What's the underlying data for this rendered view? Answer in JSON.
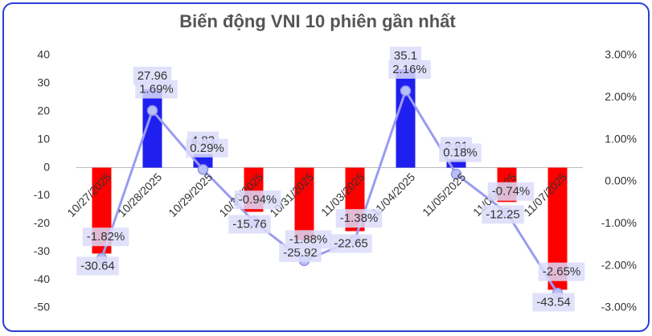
{
  "chart_data": {
    "type": "bar_line",
    "title": "Biến động VNI 10 phiên gần nhất",
    "categories": [
      "10/27/2025",
      "10/28/2025",
      "10/29/2025",
      "10/30/2025",
      "10/31/2025",
      "11/03/2025",
      "11/04/2025",
      "11/05/2025",
      "11/06/2025",
      "11/07/2025"
    ],
    "series": [
      {
        "type": "bar",
        "values": [
          -30.64,
          27.96,
          4.83,
          -15.76,
          -25.92,
          -22.65,
          35.1,
          2.91,
          -12.25,
          -43.54
        ],
        "colors": [
          "#ff0000",
          "#1f1fef",
          "#1f1fef",
          "#ff0000",
          "#ff0000",
          "#ff0000",
          "#1f1fef",
          "#1f1fef",
          "#ff0000",
          "#ff0000"
        ]
      },
      {
        "type": "line",
        "axis": "y2",
        "color": "#9a9cf0",
        "values": [
          -1.82,
          1.69,
          0.29,
          -0.94,
          -1.88,
          -1.38,
          2.16,
          0.18,
          -0.74,
          -2.65
        ],
        "value_labels": [
          "-1.82%",
          "1.69%",
          "0.29%",
          "-0.94%",
          "-1.88%",
          "-1.38%",
          "2.16%",
          "0.18%",
          "-0.74%",
          "-2.65%"
        ]
      }
    ],
    "ylim": [
      -50,
      40
    ],
    "yticks": [
      -50,
      -40,
      -30,
      -20,
      -10,
      0,
      10,
      20,
      30,
      40
    ],
    "y2lim": [
      -3,
      3
    ],
    "y2ticks": [
      {
        "value": -3,
        "label": "-3.00%"
      },
      {
        "value": -2,
        "label": "-2.00%"
      },
      {
        "value": -1,
        "label": "-1.00%"
      },
      {
        "value": 0,
        "label": "0.00%"
      },
      {
        "value": 1,
        "label": "1.00%"
      },
      {
        "value": 2,
        "label": "2.00%"
      },
      {
        "value": 3,
        "label": "3.00%"
      }
    ]
  }
}
